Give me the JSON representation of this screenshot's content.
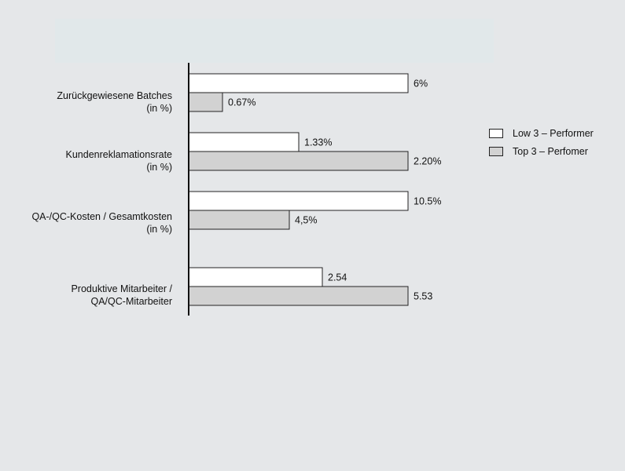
{
  "chart_data": {
    "type": "bar",
    "orientation": "horizontal",
    "categories": [
      "Zurückgewiesene Batches\n(in %)",
      "Kundenreklamationsrate\n(in %)",
      "QA-/QC-Kosten / Gesamtkosten\n(in %)",
      "Produktive Mitarbeiter /\nQA/QC-Mitarbeiter"
    ],
    "series": [
      {
        "name": "Low 3 – Performer",
        "color": "#ffffff",
        "values": [
          6,
          1.33,
          10.5,
          2.54
        ],
        "labels": [
          "6%",
          "1.33%",
          "10.5%",
          "2.54"
        ],
        "rel_length": [
          1.0,
          0.5,
          1.0,
          0.61
        ]
      },
      {
        "name": "Top 3 – Perfomer",
        "color": "#d2d2d2",
        "values": [
          0.67,
          2.2,
          4.5,
          5.53
        ],
        "labels": [
          "0.67%",
          "2.20%",
          "4,5%",
          "5.53"
        ],
        "rel_length": [
          0.155,
          1.0,
          0.46,
          1.0
        ]
      }
    ],
    "legend_position": "right",
    "grid": false
  }
}
